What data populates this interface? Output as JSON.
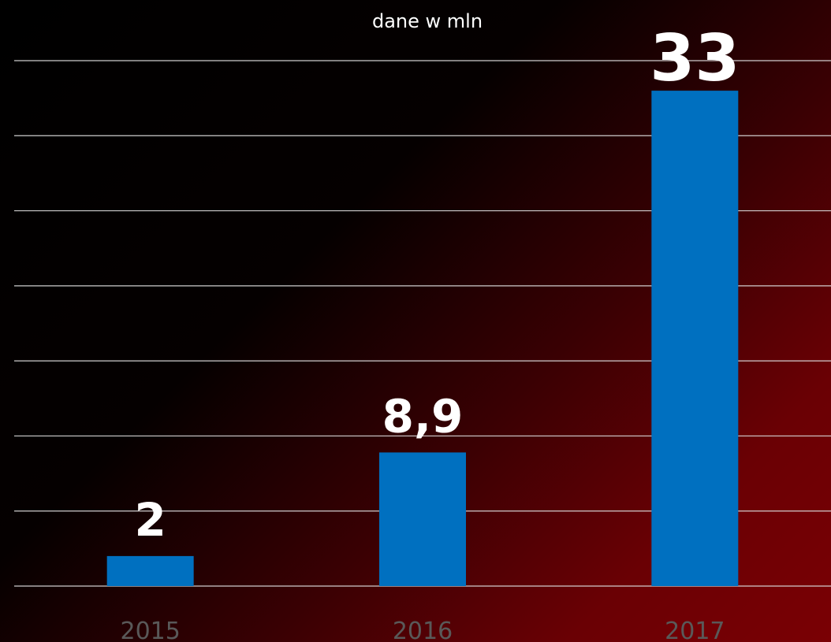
{
  "chart_data": {
    "type": "bar",
    "subtitle": "dane w mln",
    "categories": [
      "2015",
      "2016",
      "2017"
    ],
    "values": [
      2,
      8.9,
      33
    ],
    "data_labels": [
      "2",
      "8,9",
      "33"
    ],
    "ylim": [
      0,
      35
    ],
    "grid": true,
    "legend": "none",
    "colors": {
      "bar": "#0070c0",
      "grid": "#d9d9d9",
      "label": "#ffffff",
      "tick": "#595959"
    }
  }
}
